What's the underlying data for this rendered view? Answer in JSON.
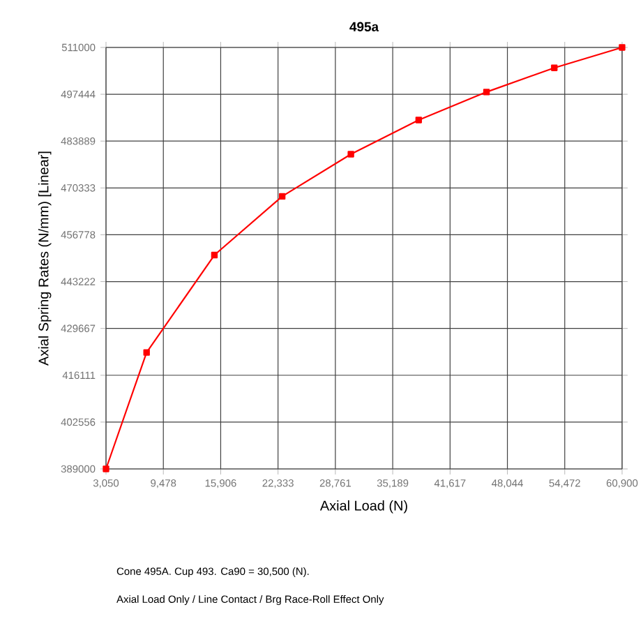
{
  "chart_data": {
    "type": "line",
    "title": "495a",
    "xlabel": "Axial Load  (N)",
    "ylabel": "Axial Spring Rates (N/mm)  [Linear]",
    "annotations": [
      "Cone 495A. Cup 493. Ca90 = 30,500 (N).",
      "Axial Load Only / Line Contact / Brg Race-Roll Effect Only"
    ],
    "x": [
      3050,
      7600,
      15200,
      22800,
      30500,
      38100,
      45700,
      53300,
      60900
    ],
    "series": [
      {
        "color": "#ff0000",
        "values": [
          389000,
          422700,
          450900,
          467900,
          480100,
          490000,
          498100,
          505100,
          511000
        ]
      }
    ],
    "xlim": [
      3050,
      60900
    ],
    "ylim": [
      389000,
      511000
    ],
    "xticks": [
      {
        "value": 3050,
        "label": "3,050"
      },
      {
        "value": 9478,
        "label": "9,478"
      },
      {
        "value": 15906,
        "label": "15,906"
      },
      {
        "value": 22333,
        "label": "22,333"
      },
      {
        "value": 28761,
        "label": "28,761"
      },
      {
        "value": 35189,
        "label": "35,189"
      },
      {
        "value": 41617,
        "label": "41,617"
      },
      {
        "value": 48044,
        "label": "48,044"
      },
      {
        "value": 54472,
        "label": "54,472"
      },
      {
        "value": 60900,
        "label": "60,900"
      }
    ],
    "yticks": [
      389000,
      402556,
      416111,
      429667,
      443222,
      456778,
      470333,
      483889,
      497444,
      511000
    ],
    "grid": true,
    "marker": "square",
    "line_style": "solid"
  }
}
